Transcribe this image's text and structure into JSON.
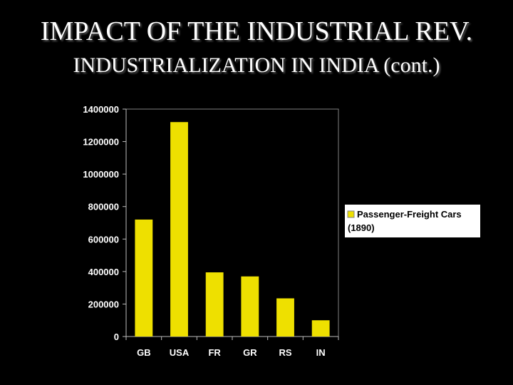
{
  "slide": {
    "title": "IMPACT OF THE INDUSTRIAL REV.",
    "subtitle": "INDUSTRIALIZATION IN INDIA (cont.)"
  },
  "colors": {
    "background": "#000000",
    "bar": "#EEE000",
    "text": "#FFFFFF",
    "axis": "#808080"
  },
  "chart_data": {
    "type": "bar",
    "categories": [
      "GB",
      "USA",
      "FR",
      "GR",
      "RS",
      "IN"
    ],
    "series": [
      {
        "name": "Passenger-Freight Cars (1890)",
        "values": [
          720000,
          1320000,
          395000,
          370000,
          235000,
          100000
        ]
      }
    ],
    "yticks": [
      "1400000",
      "1200000",
      "1000000",
      "800000",
      "600000",
      "400000",
      "200000",
      "0"
    ],
    "ylim": [
      0,
      1400000
    ],
    "grid": false,
    "legend": {
      "position": "right",
      "line1": "Passenger-Freight Cars",
      "line2": "(1890)"
    }
  }
}
